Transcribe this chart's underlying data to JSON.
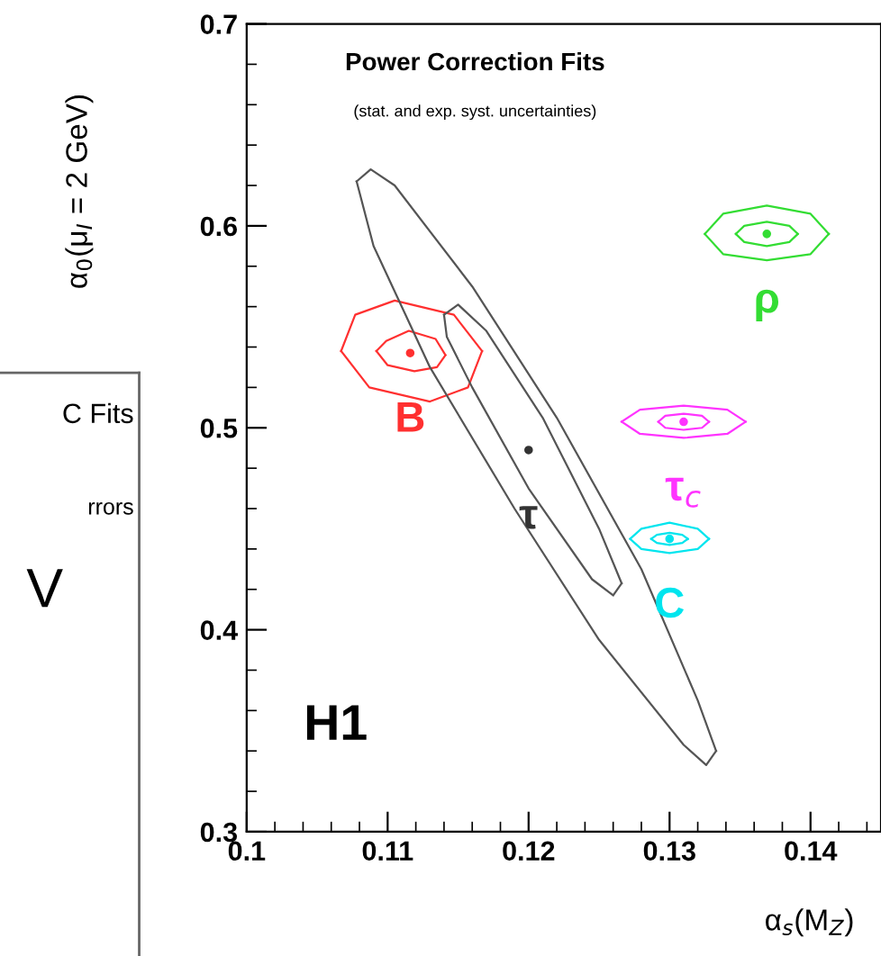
{
  "chart_data": {
    "type": "line",
    "title": "Power Correction Fits",
    "subtitle": "(stat. and exp. syst. uncertainties)",
    "xlabel": "α$_{s}$(M$_{Z}$)",
    "ylabel": "α$_{0}$(μ$_{I}$ = 2 GeV)",
    "annotations": [
      "H1",
      "C Fits",
      "rrors",
      "V"
    ],
    "xlim": [
      0.1,
      0.145
    ],
    "xticks": [
      0.1,
      0.11,
      0.12,
      0.13,
      0.14
    ],
    "ylim": [
      0.3,
      0.7
    ],
    "yticks": [
      0.3,
      0.4,
      0.5,
      0.6,
      0.7
    ],
    "grid": false,
    "legend": false,
    "series": [
      {
        "color": "#ff3030",
        "x": [
          0.1067,
          0.1077,
          0.1105,
          0.1147,
          0.1167
        ],
        "values": [
          0.538,
          0.556,
          0.563,
          0.556,
          0.538
        ]
      },
      {
        "color": "#ff3030",
        "x": [
          0.1067,
          0.1087,
          0.113,
          0.1157,
          0.1167
        ],
        "values": [
          0.538,
          0.52,
          0.513,
          0.52,
          0.538
        ]
      },
      {
        "color": "#ff3030",
        "x": [
          0.1092,
          0.1099,
          0.1115,
          0.1134,
          0.1141
        ],
        "values": [
          0.538,
          0.543,
          0.548,
          0.544,
          0.536
        ]
      },
      {
        "color": "#ff3030",
        "x": [
          0.1092,
          0.11,
          0.1119,
          0.1135,
          0.1141
        ],
        "values": [
          0.538,
          0.531,
          0.528,
          0.53,
          0.536
        ]
      },
      {
        "type": "scatter",
        "name": "B",
        "color": "#ff3030",
        "x": [
          0.1116
        ],
        "values": [
          0.537
        ]
      },
      {
        "color": "#555555",
        "x": [
          0.1078,
          0.1088,
          0.1105,
          0.116,
          0.122,
          0.128,
          0.132,
          0.1333
        ],
        "values": [
          0.622,
          0.628,
          0.62,
          0.57,
          0.505,
          0.43,
          0.365,
          0.34
        ]
      },
      {
        "color": "#555555",
        "x": [
          0.1078,
          0.109,
          0.113,
          0.119,
          0.125,
          0.131,
          0.1326,
          0.1333
        ],
        "values": [
          0.622,
          0.59,
          0.53,
          0.46,
          0.395,
          0.343,
          0.333,
          0.34
        ]
      },
      {
        "color": "#555555",
        "x": [
          0.114,
          0.115,
          0.117,
          0.121,
          0.125,
          0.1266
        ],
        "values": [
          0.556,
          0.561,
          0.548,
          0.505,
          0.45,
          0.423
        ]
      },
      {
        "color": "#555555",
        "x": [
          0.114,
          0.1142,
          0.116,
          0.12,
          0.1245,
          0.126,
          0.1266
        ],
        "values": [
          0.556,
          0.545,
          0.52,
          0.47,
          0.425,
          0.417,
          0.423
        ]
      },
      {
        "type": "scatter",
        "name": "τ",
        "color": "#333333",
        "x": [
          0.12
        ],
        "values": [
          0.489
        ]
      },
      {
        "color": "#ff33ff",
        "x": [
          0.1266,
          0.1279,
          0.131,
          0.1341,
          0.1354
        ],
        "values": [
          0.503,
          0.509,
          0.511,
          0.509,
          0.503
        ]
      },
      {
        "color": "#ff33ff",
        "x": [
          0.1266,
          0.1279,
          0.131,
          0.1341,
          0.1354
        ],
        "values": [
          0.503,
          0.497,
          0.495,
          0.497,
          0.503
        ]
      },
      {
        "color": "#ff33ff",
        "x": [
          0.1292,
          0.1297,
          0.131,
          0.1323,
          0.1328
        ],
        "values": [
          0.503,
          0.506,
          0.507,
          0.506,
          0.503
        ]
      },
      {
        "color": "#ff33ff",
        "x": [
          0.1292,
          0.1297,
          0.131,
          0.1323,
          0.1328
        ],
        "values": [
          0.503,
          0.5,
          0.499,
          0.5,
          0.503
        ]
      },
      {
        "type": "scatter",
        "name": "τ$_{c}$",
        "color": "#ff33ff",
        "x": [
          0.131
        ],
        "values": [
          0.503
        ]
      },
      {
        "color": "#33dd33",
        "x": [
          0.1325,
          0.1338,
          0.1369,
          0.14,
          0.1413
        ],
        "values": [
          0.596,
          0.606,
          0.61,
          0.606,
          0.596
        ]
      },
      {
        "color": "#33dd33",
        "x": [
          0.1325,
          0.1338,
          0.1369,
          0.14,
          0.1413
        ],
        "values": [
          0.596,
          0.586,
          0.583,
          0.586,
          0.596
        ]
      },
      {
        "color": "#33dd33",
        "x": [
          0.1347,
          0.1353,
          0.1369,
          0.1385,
          0.1391
        ],
        "values": [
          0.596,
          0.6,
          0.602,
          0.6,
          0.596
        ]
      },
      {
        "color": "#33dd33",
        "x": [
          0.1347,
          0.1353,
          0.1369,
          0.1385,
          0.1391
        ],
        "values": [
          0.596,
          0.592,
          0.59,
          0.592,
          0.596
        ]
      },
      {
        "type": "scatter",
        "name": "ρ",
        "color": "#33dd33",
        "x": [
          0.1369
        ],
        "values": [
          0.596
        ]
      },
      {
        "color": "#00e5ee",
        "x": [
          0.1272,
          0.128,
          0.13,
          0.132,
          0.1328
        ],
        "values": [
          0.445,
          0.45,
          0.453,
          0.45,
          0.445
        ]
      },
      {
        "color": "#00e5ee",
        "x": [
          0.1272,
          0.128,
          0.13,
          0.132,
          0.1328
        ],
        "values": [
          0.445,
          0.44,
          0.438,
          0.44,
          0.445
        ]
      },
      {
        "color": "#00e5ee",
        "x": [
          0.1287,
          0.1291,
          0.13,
          0.1309,
          0.1313
        ],
        "values": [
          0.445,
          0.447,
          0.448,
          0.447,
          0.445
        ]
      },
      {
        "color": "#00e5ee",
        "x": [
          0.1287,
          0.1291,
          0.13,
          0.1309,
          0.1313
        ],
        "values": [
          0.445,
          0.443,
          0.442,
          0.443,
          0.445
        ]
      },
      {
        "type": "scatter",
        "name": "C",
        "color": "#00e5ee",
        "x": [
          0.13
        ],
        "values": [
          0.445
        ]
      }
    ]
  }
}
